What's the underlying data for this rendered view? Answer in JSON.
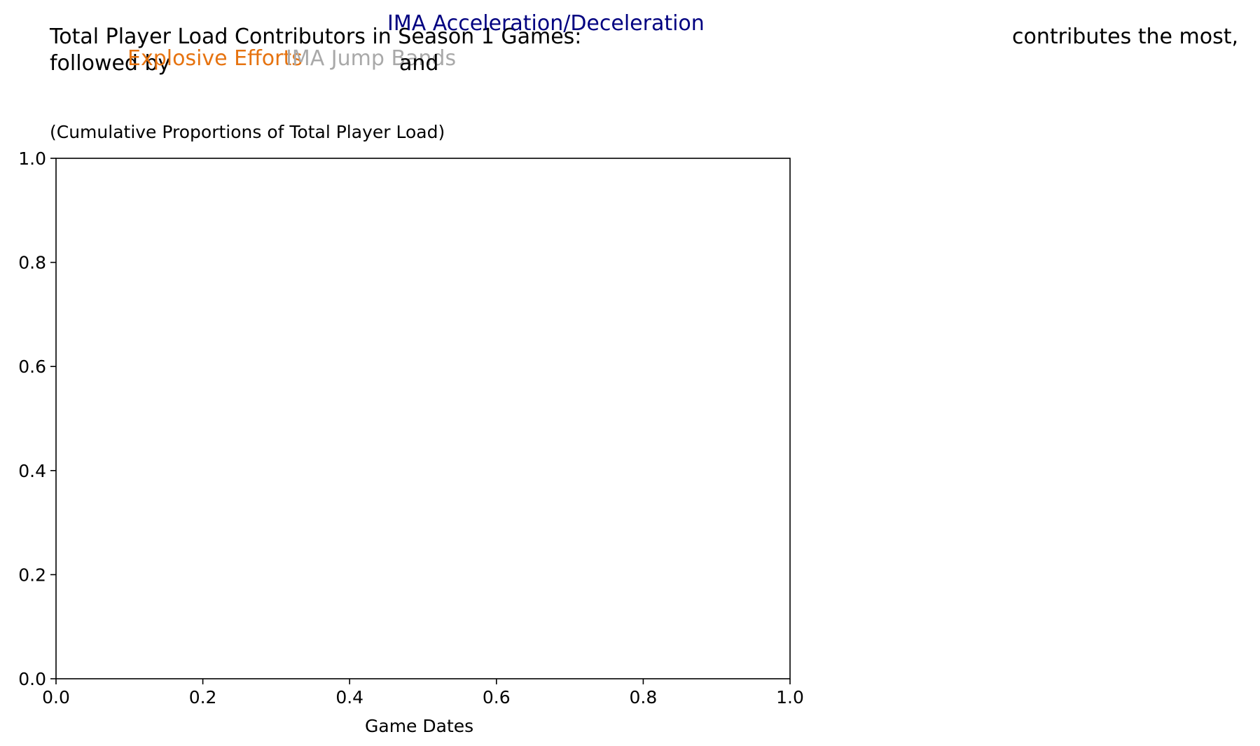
{
  "title": {
    "line1_prefix": "Total Player Load Contributors in Season 1 Games:",
    "highlight_1": "IMA Acceleration/Deceleration",
    "line1_suffix": "contributes the most,",
    "line2_prefix": "followed by",
    "highlight_2": "Explosive Efforts",
    "highlight_3": "IMA Jump Bands",
    "line2_and": "and"
  },
  "subtitle": "(Cumulative Proportions of Total Player Load)",
  "colors": {
    "highlight_1": "#000080",
    "highlight_2": "#e67310",
    "highlight_3": "#a9a9a9",
    "text": "#000000",
    "axis": "#000000",
    "background": "#ffffff"
  },
  "chart_data": {
    "type": "area",
    "xlabel": "Game Dates",
    "ylabel": "",
    "xlim": [
      0.0,
      1.0
    ],
    "ylim": [
      0.0,
      1.0
    ],
    "xticks": [
      "0.0",
      "0.2",
      "0.4",
      "0.6",
      "0.8",
      "1.0"
    ],
    "yticks": [
      "0.0",
      "0.2",
      "0.4",
      "0.6",
      "0.8",
      "1.0"
    ],
    "grid": false,
    "legend": "none",
    "series": []
  }
}
